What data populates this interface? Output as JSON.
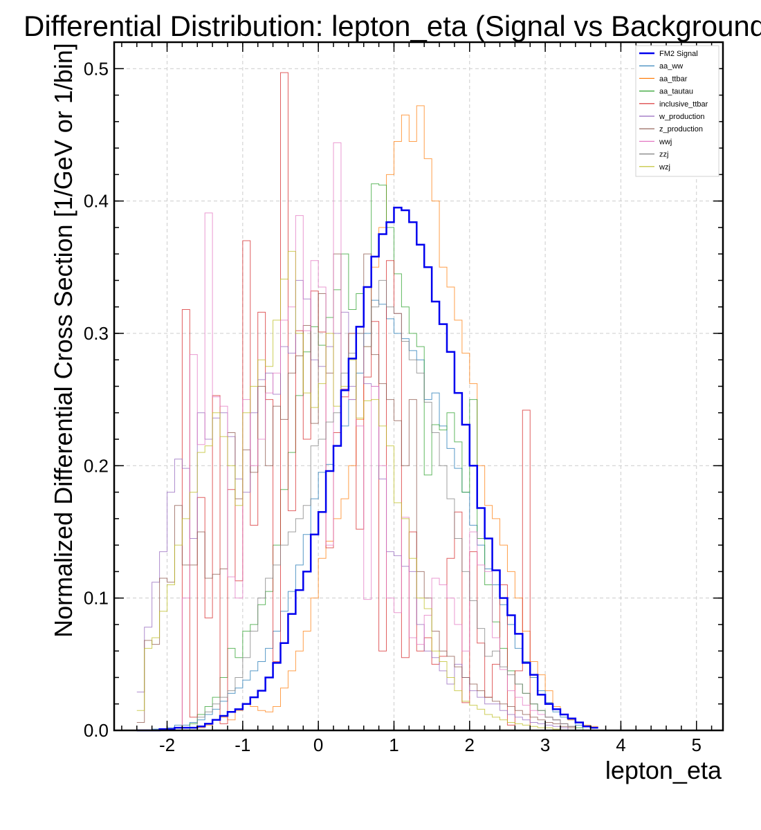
{
  "chart_data": {
    "type": "line",
    "title": "Differential Distribution: lepton_eta (Signal vs Background)",
    "xlabel": "lepton_eta",
    "ylabel": "Normalized Differential Cross Section [1/GeV or 1/bin]",
    "xlim": [
      -2.7,
      5.35
    ],
    "ylim": [
      0.0,
      0.52
    ],
    "xticks": [
      -2,
      -1,
      0,
      1,
      2,
      3,
      4,
      5
    ],
    "xtick_labels": [
      "-2",
      "-1",
      "0",
      "1",
      "2",
      "3",
      "4",
      "5"
    ],
    "yticks": [
      0.0,
      0.1,
      0.2,
      0.3,
      0.4,
      0.5
    ],
    "ytick_labels": [
      "0.0",
      "0.1",
      "0.2",
      "0.3",
      "0.4",
      "0.5"
    ],
    "grid": true,
    "legend_position": "top-right",
    "bin_start": -2.4,
    "bin_width": 0.1,
    "series": [
      {
        "name": "FM2 Signal",
        "color": "#0000ee",
        "line_width": 2.5,
        "values": [
          0,
          0,
          0,
          0.001,
          0.001,
          0.002,
          0.002,
          0.002,
          0.003,
          0.005,
          0.008,
          0.011,
          0.014,
          0.016,
          0.02,
          0.025,
          0.03,
          0.04,
          0.051,
          0.066,
          0.088,
          0.106,
          0.12,
          0.148,
          0.165,
          0.196,
          0.215,
          0.257,
          0.281,
          0.305,
          0.335,
          0.358,
          0.375,
          0.384,
          0.395,
          0.393,
          0.384,
          0.367,
          0.35,
          0.324,
          0.307,
          0.286,
          0.255,
          0.231,
          0.2,
          0.168,
          0.145,
          0.121,
          0.1,
          0.087,
          0.073,
          0.051,
          0.042,
          0.027,
          0.02,
          0.016,
          0.012,
          0.009,
          0.006,
          0.003,
          0.002
        ]
      },
      {
        "name": "aa_ww",
        "color": "#1f77b4",
        "line_width": 1,
        "values": [
          0,
          0,
          0.001,
          0.001,
          0.002,
          0.004,
          0.004,
          0.006,
          0.008,
          0.012,
          0.016,
          0.022,
          0.028,
          0.032,
          0.038,
          0.045,
          0.052,
          0.062,
          0.075,
          0.09,
          0.105,
          0.125,
          0.148,
          0.175,
          0.195,
          0.201,
          0.215,
          0.23,
          0.25,
          0.27,
          0.3,
          0.325,
          0.322,
          0.311,
          0.3,
          0.296,
          0.287,
          0.28,
          0.25,
          0.255,
          0.23,
          0.213,
          0.198,
          0.18,
          0.155,
          0.14,
          0.122,
          0.11,
          0.095,
          0.08,
          0.062,
          0.052,
          0.04,
          0.03,
          0.021,
          0.014,
          0.01,
          0.008,
          0.004,
          0.003,
          0.002
        ]
      },
      {
        "name": "aa_ttbar",
        "color": "#ff7f0e",
        "line_width": 1,
        "values": [
          0,
          0,
          0,
          0,
          0,
          0,
          0,
          0,
          0.002,
          0.004,
          0.008,
          0.01,
          0.008,
          0.015,
          0.02,
          0.018,
          0.015,
          0.014,
          0.018,
          0.032,
          0.045,
          0.06,
          0.075,
          0.1,
          0.13,
          0.143,
          0.16,
          0.175,
          0.2,
          0.235,
          0.29,
          0.35,
          0.38,
          0.42,
          0.445,
          0.465,
          0.445,
          0.472,
          0.432,
          0.4,
          0.35,
          0.335,
          0.31,
          0.285,
          0.262,
          0.2,
          0.17,
          0.16,
          0.14,
          0.12,
          0.1,
          0.075,
          0.052,
          0.042,
          0.03,
          0.018,
          0.012,
          0.008,
          0.006,
          0.004,
          0.003
        ]
      },
      {
        "name": "aa_tautau",
        "color": "#2ca02c",
        "line_width": 1,
        "values": [
          0,
          0,
          0,
          0,
          0,
          0,
          0,
          0.005,
          0.012,
          0.018,
          0.025,
          0.04,
          0.062,
          0.055,
          0.075,
          0.08,
          0.095,
          0.105,
          0.14,
          0.182,
          0.21,
          0.253,
          0.286,
          0.305,
          0.291,
          0.312,
          0.333,
          0.36,
          0.318,
          0.33,
          0.335,
          0.413,
          0.412,
          0.38,
          0.345,
          0.32,
          0.3,
          0.29,
          0.193,
          0.231,
          0.227,
          0.24,
          0.218,
          0.18,
          0.25,
          0.145,
          0.11,
          0.082,
          0.062,
          0.045,
          0.035,
          0.028,
          0.02,
          0.015,
          0.01,
          0.008,
          0.005,
          0.003,
          0.002,
          0,
          0
        ]
      },
      {
        "name": "inclusive_ttbar",
        "color": "#d62728",
        "line_width": 1,
        "values": [
          0,
          0,
          0,
          0,
          0,
          0,
          0.318,
          0.01,
          0.176,
          0.085,
          0.253,
          0.005,
          0.182,
          0.113,
          0.37,
          0.155,
          0.316,
          0.25,
          0.052,
          0.497,
          0.166,
          0.302,
          0.22,
          0.332,
          0.301,
          0.138,
          0.225,
          0.252,
          0.3,
          0.152,
          0.267,
          0.309,
          0.06,
          0.355,
          0.315,
          0.055,
          0.15,
          0.06,
          0.07,
          0.05,
          0.056,
          0.13,
          0.165,
          0.021,
          0.135,
          0.066,
          0.025,
          0.05,
          0.11,
          0.004,
          0.045,
          0.242,
          0,
          0,
          0,
          0,
          0,
          0,
          0,
          0,
          0
        ]
      },
      {
        "name": "w_production",
        "color": "#9467bd",
        "line_width": 1,
        "values": [
          0.029,
          0.078,
          0.112,
          0.135,
          0.18,
          0.205,
          0.198,
          0.145,
          0.24,
          0.22,
          0.236,
          0.24,
          0.222,
          0.19,
          0.18,
          0.24,
          0.265,
          0.27,
          0.254,
          0.29,
          0.285,
          0.34,
          0.326,
          0.28,
          0.275,
          0.29,
          0.3,
          0.316,
          0.26,
          0.305,
          0.262,
          0.26,
          0.19,
          0.135,
          0.132,
          0.124,
          0.12,
          0.08,
          0.06,
          0.055,
          0.045,
          0.035,
          0.05,
          0.04,
          0.03,
          0.025,
          0.02,
          0.02,
          0.015,
          0.012,
          0.01,
          0.008,
          0.006,
          0.005,
          0.004,
          0.003,
          0.002,
          0,
          0,
          0,
          0
        ]
      },
      {
        "name": "z_production",
        "color": "#8c564b",
        "line_width": 1,
        "values": [
          0.006,
          0.068,
          0.065,
          0.115,
          0.112,
          0.17,
          0.125,
          0.125,
          0.15,
          0.115,
          0.118,
          0.122,
          0.225,
          0.175,
          0.212,
          0.195,
          0.26,
          0.2,
          0.245,
          0.235,
          0.27,
          0.283,
          0.306,
          0.232,
          0.33,
          0.27,
          0.36,
          0.258,
          0.3,
          0.3,
          0.36,
          0.284,
          0.262,
          0.25,
          0.234,
          0.2,
          0.25,
          0.12,
          0.1,
          0.075,
          0.06,
          0.056,
          0.048,
          0.04,
          0.035,
          0.03,
          0.025,
          0.022,
          0.02,
          0.018,
          0.015,
          0.012,
          0.01,
          0.008,
          0.006,
          0.005,
          0.003,
          0.002,
          0,
          0,
          0
        ]
      },
      {
        "name": "wwj",
        "color": "#e377c2",
        "line_width": 1,
        "values": [
          0,
          0,
          0,
          0,
          0,
          0,
          0.1,
          0.284,
          0.216,
          0.391,
          0.252,
          0.245,
          0.116,
          0.1,
          0.25,
          0.2,
          0.22,
          0.255,
          0.27,
          0.31,
          0.32,
          0.389,
          0.302,
          0.355,
          0.335,
          0.14,
          0.444,
          0.258,
          0.25,
          0.23,
          0.099,
          0.26,
          0.2,
          0.1,
          0.089,
          0.161,
          0.07,
          0.065,
          0.087,
          0.115,
          0.11,
          0.1,
          0.08,
          0.06,
          0.15,
          0.125,
          0.12,
          0.07,
          0.046,
          0.03,
          0.025,
          0.019,
          0.015,
          0.012,
          0.01,
          0.008,
          0.005,
          0.003,
          0,
          0,
          0
        ]
      },
      {
        "name": "zzj",
        "color": "#7f7f7f",
        "line_width": 1,
        "values": [
          0,
          0,
          0,
          0,
          0,
          0,
          0,
          0,
          0.01,
          0.014,
          0.02,
          0.025,
          0.03,
          0.04,
          0.055,
          0.075,
          0.1,
          0.115,
          0.125,
          0.14,
          0.15,
          0.16,
          0.17,
          0.215,
          0.22,
          0.233,
          0.24,
          0.27,
          0.285,
          0.3,
          0.29,
          0.32,
          0.34,
          0.32,
          0.315,
          0.294,
          0.28,
          0.27,
          0.248,
          0.225,
          0.2,
          0.175,
          0.145,
          0.12,
          0.098,
          0.077,
          0.056,
          0.06,
          0.048,
          0.042,
          0.035,
          0.028,
          0.02,
          0.015,
          0.01,
          0.008,
          0.005,
          0.003,
          0,
          0,
          0
        ]
      },
      {
        "name": "wzj",
        "color": "#bcbd22",
        "line_width": 1,
        "values": [
          0.015,
          0.062,
          0.07,
          0.09,
          0.11,
          0.14,
          0.16,
          0.18,
          0.21,
          0.215,
          0.24,
          0.222,
          0.2,
          0.17,
          0.24,
          0.26,
          0.28,
          0.275,
          0.31,
          0.341,
          0.362,
          0.3,
          0.255,
          0.244,
          0.262,
          0.3,
          0.245,
          0.26,
          0.28,
          0.236,
          0.249,
          0.25,
          0.23,
          0.215,
          0.172,
          0.16,
          0.13,
          0.1,
          0.092,
          0.06,
          0.052,
          0.04,
          0.03,
          0.022,
          0.019,
          0.016,
          0.012,
          0.01,
          0.008,
          0.006,
          0.005,
          0.004,
          0.003,
          0.002,
          0.002,
          0.001,
          0,
          0,
          0,
          0,
          0
        ]
      }
    ]
  }
}
